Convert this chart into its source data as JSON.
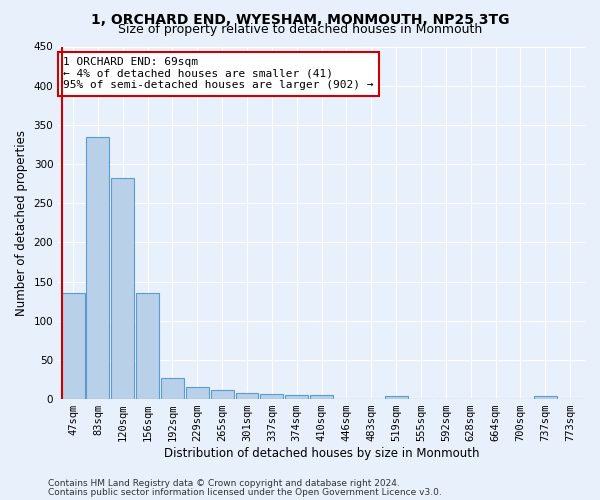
{
  "title": "1, ORCHARD END, WYESHAM, MONMOUTH, NP25 3TG",
  "subtitle": "Size of property relative to detached houses in Monmouth",
  "xlabel": "Distribution of detached houses by size in Monmouth",
  "ylabel": "Number of detached properties",
  "bar_labels": [
    "47sqm",
    "83sqm",
    "120sqm",
    "156sqm",
    "192sqm",
    "229sqm",
    "265sqm",
    "301sqm",
    "337sqm",
    "374sqm",
    "410sqm",
    "446sqm",
    "483sqm",
    "519sqm",
    "555sqm",
    "592sqm",
    "628sqm",
    "664sqm",
    "700sqm",
    "737sqm",
    "773sqm"
  ],
  "bar_values": [
    136,
    335,
    282,
    135,
    27,
    15,
    12,
    8,
    6,
    5,
    5,
    0,
    0,
    4,
    0,
    0,
    0,
    0,
    0,
    4,
    0
  ],
  "bar_color": "#b8d0e8",
  "bar_edge_color": "#5b9bd5",
  "property_line_color": "#cc0000",
  "annotation_text": "1 ORCHARD END: 69sqm\n← 4% of detached houses are smaller (41)\n95% of semi-detached houses are larger (902) →",
  "annotation_box_color": "#ffffff",
  "annotation_box_edge_color": "#cc0000",
  "ylim": [
    0,
    450
  ],
  "yticks": [
    0,
    50,
    100,
    150,
    200,
    250,
    300,
    350,
    400,
    450
  ],
  "footer_line1": "Contains HM Land Registry data © Crown copyright and database right 2024.",
  "footer_line2": "Contains public sector information licensed under the Open Government Licence v3.0.",
  "bg_color": "#e8f0fb",
  "plot_bg_color": "#e8f0fb",
  "grid_color": "#ffffff",
  "title_fontsize": 10,
  "subtitle_fontsize": 9,
  "axis_label_fontsize": 8.5,
  "tick_fontsize": 7.5,
  "footer_fontsize": 6.5
}
